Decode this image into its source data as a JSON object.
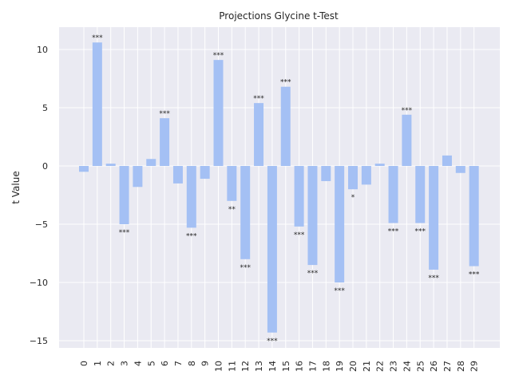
{
  "chart_data": {
    "type": "bar",
    "title": "Projections Glycine t-Test",
    "xlabel": "",
    "ylabel": "t Value",
    "categories": [
      "0",
      "1",
      "2",
      "3",
      "4",
      "5",
      "6",
      "7",
      "8",
      "9",
      "10",
      "11",
      "12",
      "13",
      "14",
      "15",
      "16",
      "17",
      "18",
      "19",
      "20",
      "21",
      "22",
      "23",
      "24",
      "25",
      "26",
      "27",
      "28",
      "29"
    ],
    "values": [
      -0.5,
      10.6,
      0.2,
      -5.0,
      -1.8,
      0.6,
      4.1,
      -1.5,
      -5.3,
      -1.1,
      9.1,
      -3.0,
      -8.0,
      5.4,
      -14.3,
      6.8,
      -5.2,
      -8.5,
      -1.3,
      -10.0,
      -2.0,
      -1.6,
      0.2,
      -4.9,
      4.4,
      -4.9,
      -8.9,
      0.9,
      -0.6,
      -8.6
    ],
    "significance": [
      "",
      "***",
      "",
      "***",
      "",
      "",
      "***",
      "",
      "***",
      "",
      "***",
      "**",
      "***",
      "***",
      "***",
      "***",
      "***",
      "***",
      "",
      "***",
      "*",
      "",
      "",
      "***",
      "***",
      "***",
      "***",
      "",
      "",
      "***"
    ],
    "yticks": [
      -15,
      -10,
      -5,
      0,
      5,
      10
    ],
    "ylim": [
      -15.5,
      12
    ],
    "grid": true,
    "colors": {
      "bar": "#a4c0f4",
      "background": "#eaeaf2",
      "grid": "#ffffff",
      "text": "#262626"
    }
  }
}
